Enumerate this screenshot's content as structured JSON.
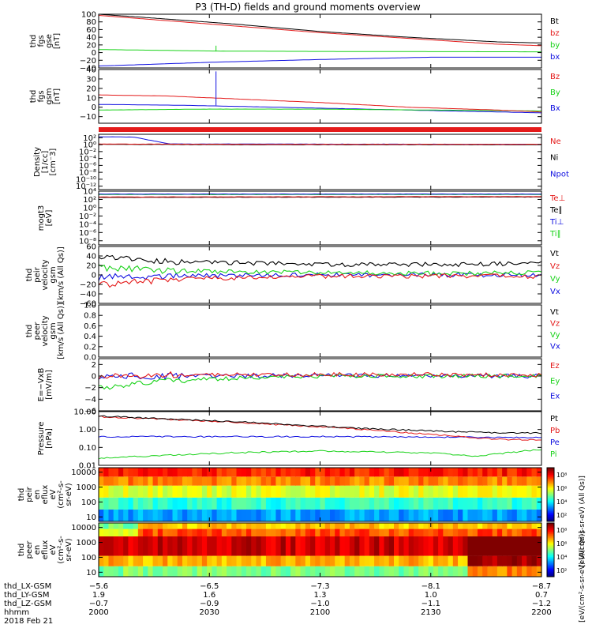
{
  "title": "P3 (TH-D) fields and ground moments overview",
  "colors": {
    "black": "#000000",
    "red": "#e41a1a",
    "green": "#19d219",
    "blue": "#1010e0"
  },
  "chart_data": [
    {
      "id": "fgs_gse",
      "type": "line",
      "ylabel": [
        "thd",
        "fgs",
        "gse",
        "[nT]"
      ],
      "ticks": [
        {
          "v": 100,
          "t": "100"
        },
        {
          "v": 80,
          "t": "80"
        },
        {
          "v": 60,
          "t": "60"
        },
        {
          "v": 40,
          "t": "40"
        },
        {
          "v": 20,
          "t": "20"
        },
        {
          "v": 0,
          "t": "0"
        },
        {
          "v": -20,
          "t": "−20"
        },
        {
          "v": -40,
          "t": "−40"
        }
      ],
      "ylim": [
        -40,
        100
      ],
      "scale": "linear",
      "series": [
        {
          "name": "Bt",
          "color": "black",
          "x": [
            0,
            0.1,
            0.3,
            0.5,
            0.7,
            0.9,
            1
          ],
          "y": [
            100,
            92,
            75,
            55,
            40,
            28,
            25
          ]
        },
        {
          "name": "bz",
          "color": "red",
          "x": [
            0,
            0.1,
            0.3,
            0.5,
            0.7,
            0.9,
            1
          ],
          "y": [
            97,
            88,
            70,
            52,
            37,
            22,
            18
          ]
        },
        {
          "name": "by",
          "color": "green",
          "x": [
            0,
            0.2,
            0.26,
            0.27,
            0.5,
            1
          ],
          "y": [
            8,
            5,
            4,
            4,
            3,
            2
          ]
        },
        {
          "name": "bx",
          "color": "blue",
          "x": [
            0,
            0.26,
            0.5,
            0.75,
            1
          ],
          "y": [
            -35,
            -25,
            -18,
            -12,
            -12
          ]
        }
      ]
    },
    {
      "id": "fgs_gsm",
      "type": "line",
      "ylabel": [
        "thd",
        "fgs",
        "gsm",
        "[nT]"
      ],
      "ticks": [
        {
          "v": 40,
          "t": "40"
        },
        {
          "v": 30,
          "t": "30"
        },
        {
          "v": 20,
          "t": "20"
        },
        {
          "v": 10,
          "t": "10"
        },
        {
          "v": 0,
          "t": "0"
        },
        {
          "v": -10,
          "t": "−10"
        }
      ],
      "ylim": [
        -17,
        40
      ],
      "scale": "linear",
      "series": [
        {
          "name": "Bz",
          "color": "red",
          "x": [
            0,
            0.15,
            0.3,
            0.5,
            0.7,
            0.9,
            1
          ],
          "y": [
            13,
            12,
            9,
            5,
            0,
            -3,
            -5
          ]
        },
        {
          "name": "By",
          "color": "green",
          "x": [
            0,
            0.25,
            0.5,
            0.75,
            1
          ],
          "y": [
            -3,
            -2,
            -2,
            -3,
            -4
          ]
        },
        {
          "name": "Bx",
          "color": "blue",
          "x": [
            0,
            0.2,
            0.5,
            0.8,
            1
          ],
          "y": [
            3,
            2,
            -1,
            -4,
            -6
          ]
        }
      ]
    },
    {
      "id": "density",
      "type": "line",
      "ylabel": [
        "Density",
        "[1/cc]",
        "[cm⁻3]"
      ],
      "ticks": [
        {
          "v": 2,
          "t": "10²"
        },
        {
          "v": 0,
          "t": "10⁰"
        },
        {
          "v": -2,
          "t": "10⁻²"
        },
        {
          "v": -4,
          "t": "10⁻⁴"
        },
        {
          "v": -6,
          "t": "10⁻⁶"
        },
        {
          "v": -8,
          "t": "10⁻⁸"
        },
        {
          "v": -10,
          "t": "10⁻¹⁰"
        },
        {
          "v": -12,
          "t": "10⁻¹²"
        }
      ],
      "ylim": [
        -13,
        3
      ],
      "scale": "log",
      "series": [
        {
          "name": "Ne",
          "color": "red",
          "x": [
            0,
            0.3,
            0.6,
            1
          ],
          "y": [
            0.2,
            0.1,
            0.1,
            0.1
          ]
        },
        {
          "name": "Ni",
          "color": "black",
          "x": [
            0,
            0.3,
            0.6,
            1
          ],
          "y": [
            0.1,
            0,
            0,
            0
          ]
        },
        {
          "name": "Npot",
          "color": "blue",
          "x": [
            0,
            0.08,
            0.12,
            0.16,
            1
          ],
          "y": [
            2.3,
            2.2,
            1.2,
            0.2,
            0.1
          ]
        }
      ]
    },
    {
      "id": "temp",
      "type": "line",
      "ylabel": [
        "mogt3",
        "[eV]"
      ],
      "ticks": [
        {
          "v": 4,
          "t": "10⁴"
        },
        {
          "v": 2,
          "t": "10²"
        },
        {
          "v": 0,
          "t": "10⁰"
        },
        {
          "v": -2,
          "t": "10⁻²"
        },
        {
          "v": -4,
          "t": "10⁻⁴"
        },
        {
          "v": -6,
          "t": "10⁻⁶"
        },
        {
          "v": -8,
          "t": "10⁻⁸"
        }
      ],
      "ylim": [
        -9,
        4
      ],
      "scale": "log",
      "series": [
        {
          "name": "Te⊥",
          "color": "red",
          "x": [
            0,
            1
          ],
          "y": [
            2.6,
            2.7
          ]
        },
        {
          "name": "Te∥",
          "color": "black",
          "x": [
            0,
            1
          ],
          "y": [
            2.5,
            2.6
          ]
        },
        {
          "name": "Ti⊥",
          "color": "blue",
          "x": [
            0,
            1
          ],
          "y": [
            3.3,
            3.3
          ]
        },
        {
          "name": "Ti∥",
          "color": "green",
          "x": [
            0,
            1
          ],
          "y": [
            3.2,
            3.2
          ]
        }
      ]
    },
    {
      "id": "peir_vel",
      "type": "line",
      "ylabel": [
        "thd",
        "peir",
        "velocity",
        "gsm",
        "[km/s (All Qs)]"
      ],
      "ticks": [
        {
          "v": 60,
          "t": "60"
        },
        {
          "v": 40,
          "t": "40"
        },
        {
          "v": 20,
          "t": "20"
        },
        {
          "v": 0,
          "t": "0"
        },
        {
          "v": -20,
          "t": "−20"
        },
        {
          "v": -40,
          "t": "−40"
        },
        {
          "v": -60,
          "t": "−60"
        }
      ],
      "ylim": [
        -60,
        60
      ],
      "scale": "linear",
      "series": [
        {
          "name": "Vt",
          "color": "black",
          "x": [
            0,
            0.2,
            0.5,
            0.8,
            1
          ],
          "y": [
            35,
            28,
            22,
            22,
            25
          ]
        },
        {
          "name": "Vz",
          "color": "red",
          "x": [
            0,
            0.2,
            0.5,
            0.8,
            1
          ],
          "y": [
            -20,
            -8,
            -3,
            -2,
            -3
          ]
        },
        {
          "name": "Vy",
          "color": "green",
          "x": [
            0,
            0.2,
            0.5,
            0.8,
            1
          ],
          "y": [
            15,
            8,
            5,
            3,
            5
          ]
        },
        {
          "name": "Vx",
          "color": "blue",
          "x": [
            0,
            0.2,
            0.5,
            0.8,
            1
          ],
          "y": [
            -5,
            -2,
            0,
            0,
            0
          ]
        }
      ]
    },
    {
      "id": "peer_vel",
      "type": "line",
      "ylabel": [
        "thd",
        "peer",
        "velocity",
        "gsm",
        "[km/s (All Qs)]"
      ],
      "ticks": [
        {
          "v": 1,
          "t": "1.0"
        },
        {
          "v": 0.8,
          "t": "0.8"
        },
        {
          "v": 0.6,
          "t": "0.6"
        },
        {
          "v": 0.4,
          "t": "0.4"
        },
        {
          "v": 0.2,
          "t": "0.2"
        },
        {
          "v": 0,
          "t": "0.0"
        }
      ],
      "ylim": [
        0,
        1
      ],
      "scale": "linear",
      "series": [
        {
          "name": "Vt",
          "color": "black",
          "x": [],
          "y": []
        },
        {
          "name": "Vz",
          "color": "red",
          "x": [],
          "y": []
        },
        {
          "name": "Vy",
          "color": "green",
          "x": [],
          "y": []
        },
        {
          "name": "Vx",
          "color": "blue",
          "x": [],
          "y": []
        }
      ]
    },
    {
      "id": "efield",
      "type": "line",
      "ylabel": [
        "E=−VxB",
        "[mV/m]"
      ],
      "ticks": [
        {
          "v": 2,
          "t": "2"
        },
        {
          "v": 0,
          "t": "0"
        },
        {
          "v": -2,
          "t": "−2"
        },
        {
          "v": -4,
          "t": "−4"
        },
        {
          "v": -6,
          "t": "−6"
        }
      ],
      "ylim": [
        -6,
        3
      ],
      "scale": "linear",
      "series": [
        {
          "name": "Ez",
          "color": "red",
          "x": [
            0,
            0.2,
            0.5,
            1
          ],
          "y": [
            0,
            0.2,
            0.3,
            0.2
          ]
        },
        {
          "name": "Ey",
          "color": "green",
          "x": [
            0,
            0.1,
            0.3,
            0.5,
            1
          ],
          "y": [
            -2,
            -1,
            -0.4,
            0,
            0
          ]
        },
        {
          "name": "Ex",
          "color": "blue",
          "x": [
            0,
            0.5,
            1
          ],
          "y": [
            0,
            0.1,
            0
          ]
        }
      ]
    },
    {
      "id": "pressure",
      "type": "line",
      "ylabel": [
        "Pressure",
        "[nPa]"
      ],
      "ticks": [
        {
          "v": 1,
          "t": "10.00"
        },
        {
          "v": 0,
          "t": "1.00"
        },
        {
          "v": -1,
          "t": "0.10"
        },
        {
          "v": -2,
          "t": "0.01"
        }
      ],
      "ylim": [
        -2,
        1
      ],
      "scale": "log",
      "series": [
        {
          "name": "Pt",
          "color": "black",
          "x": [
            0,
            0.3,
            0.6,
            0.9,
            1
          ],
          "y": [
            0.75,
            0.45,
            0.05,
            -0.2,
            -0.2
          ]
        },
        {
          "name": "Pb",
          "color": "red",
          "x": [
            0,
            0.3,
            0.6,
            0.9,
            1
          ],
          "y": [
            0.72,
            0.42,
            0.0,
            -0.55,
            -0.58
          ]
        },
        {
          "name": "Pe",
          "color": "blue",
          "x": [
            0,
            0.5,
            1
          ],
          "y": [
            -0.4,
            -0.4,
            -0.45
          ]
        },
        {
          "name": "Pi",
          "color": "green",
          "x": [
            0,
            0.3,
            0.5,
            0.75,
            0.85,
            1
          ],
          "y": [
            -1.6,
            -1.3,
            -1.2,
            -1.3,
            -1.5,
            -1.1
          ]
        }
      ]
    },
    {
      "id": "peir_spec",
      "type": "heatmap",
      "ylabel": [
        "thd",
        "peir",
        "en",
        "eflux",
        "eV",
        "(cm²-s-",
        "sr-eV)"
      ],
      "ticks": [
        {
          "v": 4,
          "t": "10000"
        },
        {
          "v": 3,
          "t": "1000"
        },
        {
          "v": 2,
          "t": "100"
        },
        {
          "v": 1,
          "t": "10"
        }
      ],
      "ylim": [
        0.7,
        4.3
      ],
      "scale": "log",
      "colorbar_ticks": [
        "10⁸",
        "10⁶",
        "10⁴",
        "10²"
      ],
      "colorbar_label": "[eV/(cm²-s-sr-eV) (All Qs)]",
      "bands": [
        {
          "e_low": 0.7,
          "e_high": 1.5,
          "level": 0.28
        },
        {
          "e_low": 1.5,
          "e_high": 2.3,
          "level": 0.42
        },
        {
          "e_low": 2.3,
          "e_high": 3.1,
          "level": 0.6
        },
        {
          "e_low": 3.1,
          "e_high": 3.7,
          "level": 0.75
        },
        {
          "e_low": 3.7,
          "e_high": 4.3,
          "level": 0.85
        }
      ]
    },
    {
      "id": "peer_spec",
      "type": "heatmap",
      "ylabel": [
        "thd",
        "peer",
        "en",
        "eflux",
        "eV",
        "(cm²-s-",
        "sr-eV)"
      ],
      "ticks": [
        {
          "v": 4,
          "t": "10000"
        },
        {
          "v": 3,
          "t": "1000"
        },
        {
          "v": 2,
          "t": "100"
        },
        {
          "v": 1,
          "t": "10"
        }
      ],
      "ylim": [
        0.7,
        4.3
      ],
      "scale": "log",
      "colorbar_ticks": [
        "10⁸",
        "10⁶",
        "10⁴",
        "10²"
      ],
      "colorbar_label": "[eV/(cm²-s-sr-eV) (All Qs)]",
      "bands": [
        {
          "e_low": 0.7,
          "e_high": 1.4,
          "level": 0.5
        },
        {
          "e_low": 1.4,
          "e_high": 2.1,
          "level": 0.7
        },
        {
          "e_low": 2.1,
          "e_high": 3.4,
          "level": 0.92
        },
        {
          "e_low": 3.4,
          "e_high": 3.9,
          "level": 0.8
        },
        {
          "e_low": 3.9,
          "e_high": 4.3,
          "level": 0.68
        }
      ]
    }
  ],
  "xaxis": {
    "rows": [
      {
        "label": "thd_LX-GSM",
        "values": [
          "−5.6",
          "−6.5",
          "−7.3",
          "−8.1",
          "−8.7"
        ]
      },
      {
        "label": "thd_LY-GSM",
        "values": [
          "1.9",
          "1.6",
          "1.3",
          "1.0",
          "0.7"
        ]
      },
      {
        "label": "thd_LZ-GSM",
        "values": [
          "−0.7",
          "−0.9",
          "−1.0",
          "−1.1",
          "−1.2"
        ]
      },
      {
        "label": "hhmm",
        "values": [
          "2000",
          "2030",
          "2100",
          "2130",
          "2200"
        ]
      }
    ],
    "date": "2018 Feb 21"
  }
}
